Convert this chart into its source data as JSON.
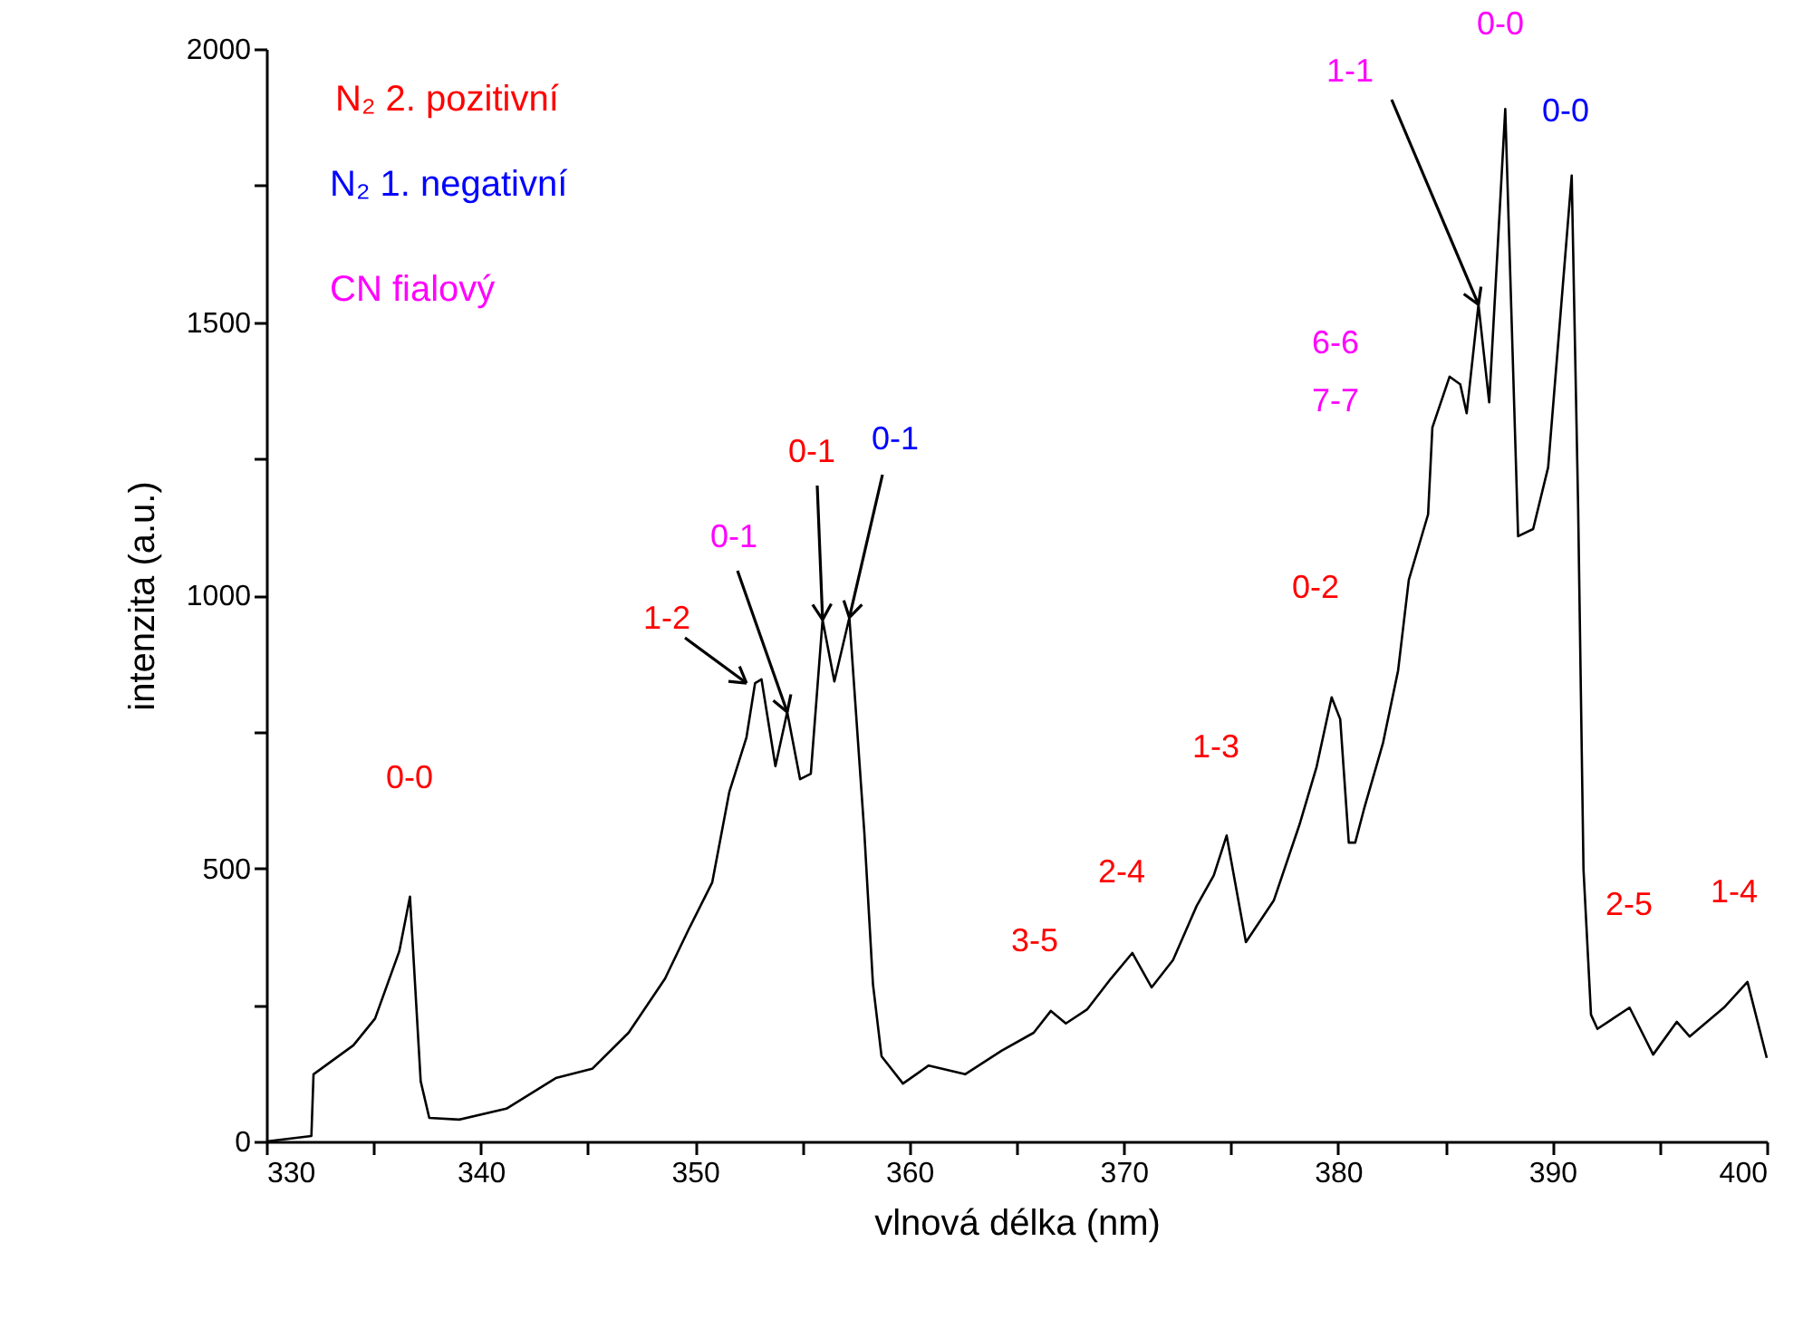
{
  "chart_data": {
    "type": "line",
    "xlabel": "vlnová délka (nm)",
    "ylabel": "intenzita (a.u.)",
    "xlim": [
      330,
      400
    ],
    "ylim": [
      0,
      2000
    ],
    "xticks": [
      330,
      {
        "value": 335,
        "label": null
      },
      340,
      {
        "value": 345,
        "label": null
      },
      350,
      {
        "value": 355,
        "label": null
      },
      360,
      {
        "value": 365,
        "label": null
      },
      370,
      {
        "value": 375,
        "label": null
      },
      380,
      {
        "value": 385,
        "label": null
      },
      390,
      {
        "value": 395,
        "label": null
      },
      400
    ],
    "yticks": [
      0,
      {
        "value": 250,
        "label": null
      },
      500,
      {
        "value": 750,
        "label": null
      },
      1000,
      {
        "value": 1250,
        "label": null
      },
      1500,
      {
        "value": 1750,
        "label": null
      },
      2000
    ],
    "grid": false,
    "marker": "none",
    "line_style": "solid",
    "series": [
      {
        "color": "#000000",
        "x": [
          330,
          332.1,
          332.2,
          334.06,
          335.07,
          336.2,
          336.7,
          337.2,
          337.6,
          339.0,
          341.2,
          343.5,
          345.2,
          346.9,
          348.6,
          349.7,
          350.8,
          351.6,
          352.4,
          352.8,
          353.1,
          353.75,
          354.3,
          354.9,
          355.4,
          355.95,
          356.5,
          357.2,
          357.9,
          358.3,
          358.7,
          359.7,
          360.9,
          362.6,
          364.3,
          365.8,
          366.6,
          367.3,
          368.3,
          369.4,
          370.4,
          371.3,
          372.3,
          373.4,
          374.2,
          374.8,
          375.7,
          377.0,
          378.2,
          379.0,
          379.7,
          380.1,
          380.5,
          380.8,
          381.2,
          382.1,
          382.8,
          383.3,
          384.2,
          384.4,
          385.2,
          385.7,
          386.0,
          386.55,
          387.05,
          387.8,
          388.4,
          389.1,
          389.8,
          390.9,
          391.2,
          391.45,
          391.8,
          392.1,
          393.6,
          394.7,
          395.8,
          396.4,
          398.0,
          399.1,
          400.0
        ],
        "values": [
          0,
          10,
          123,
          176,
          225,
          348,
          448,
          110,
          43,
          40,
          60,
          116,
          133,
          199,
          298,
          388,
          474,
          640,
          740,
          839,
          846,
          687,
          786,
          663,
          673,
          955,
          842,
          959,
          564,
          288,
          156,
          106,
          139,
          123,
          166,
          199,
          239,
          216,
          242,
          298,
          345,
          282,
          332,
          431,
          487,
          560,
          365,
          441,
          580,
          686,
          813,
          773,
          547,
          547,
          607,
          730,
          862,
          1028,
          1148,
          1307,
          1400,
          1386,
          1333,
          1532,
          1353,
          1890,
          1108,
          1121,
          1234,
          1768,
          1161,
          498,
          232,
          206,
          245,
          159,
          219,
          192,
          245,
          292,
          153
        ]
      }
    ],
    "annotations": [
      "N₂ 2. pozitivní",
      "N₂ 1. negativní",
      "CN fialový",
      "0-0",
      {
        "text": "1-2",
        "x": 352.4,
        "y": 839
      },
      {
        "text": "0-1",
        "x": 354.3,
        "y": 786
      },
      {
        "text": "0-1",
        "x": 355.95,
        "y": 955
      },
      {
        "text": "0-1",
        "x": 357.2,
        "y": 959
      },
      "3-5",
      "2-4",
      "1-3",
      "0-2",
      "6-6",
      "7-7",
      {
        "text": "1-1",
        "x": 386.55,
        "y": 1532
      },
      "0-0",
      "0-0",
      "2-5",
      "1-4"
    ]
  }
}
